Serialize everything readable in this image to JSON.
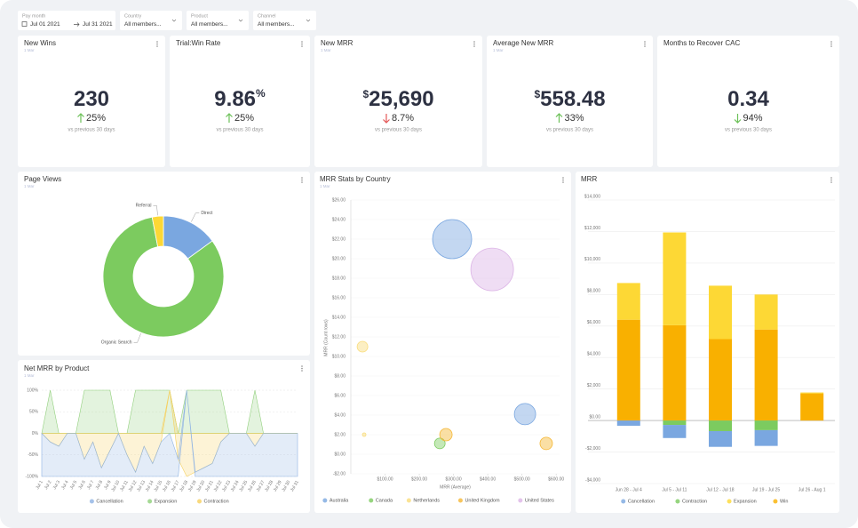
{
  "filters": [
    {
      "label": "Pay month",
      "value": "Jul 01 2021",
      "value_end": "Jul 31 2021"
    },
    {
      "label": "Country",
      "value": "All members..."
    },
    {
      "label": "Product",
      "value": "All members..."
    },
    {
      "label": "Channel",
      "value": "All members..."
    }
  ],
  "kpis": [
    {
      "title": "New Wins",
      "subtitle": "1 Mar",
      "value": "230",
      "change": "25%",
      "direction": "up",
      "change_color": "#6cc158",
      "comparison": "vs previous 30 days"
    },
    {
      "title": "Trial:Win Rate",
      "value": "9.86",
      "suffix": "%",
      "change": "25%",
      "direction": "up",
      "change_color": "#6cc158",
      "comparison": "vs previous 30 days"
    },
    {
      "title": "New MRR",
      "subtitle": "1 Mar",
      "prefix": "$",
      "value": "25,690",
      "change": "8.7%",
      "direction": "down",
      "change_color": "#e45757",
      "comparison": "vs previous 30 days"
    },
    {
      "title": "Average New MRR",
      "subtitle": "1 Mar",
      "prefix": "$",
      "value": "558.48",
      "change": "33%",
      "direction": "up",
      "change_color": "#6cc158",
      "comparison": "vs previous 30 days"
    },
    {
      "title": "Months to Recover CAC",
      "value": "0.34",
      "change": "94%",
      "direction": "down",
      "change_color": "#6cc158",
      "comparison": "vs previous 30 days"
    }
  ],
  "chart_data": [
    {
      "type": "pie",
      "title": "Page Views",
      "subtitle": "1 Mar",
      "hole": 0.5,
      "categories": [
        "Direct",
        "Organic Search",
        "Referral"
      ],
      "values": [
        15,
        82,
        3
      ],
      "colors": [
        "#7aa7e0",
        "#7ccb5f",
        "#fdd835"
      ]
    },
    {
      "type": "area",
      "title": "Net MRR by Product",
      "subtitle": "1 Mar",
      "legend": "bottom",
      "categories": [
        "Jul 1",
        "Jul 2",
        "Jul 3",
        "Jul 4",
        "Jul 5",
        "Jul 6",
        "Jul 7",
        "Jul 8",
        "Jul 9",
        "Jul 10",
        "Jul 11",
        "Jul 12",
        "Jul 13",
        "Jul 14",
        "Jul 15",
        "Jul 16",
        "Jul 17",
        "Jul 18",
        "Jul 19",
        "Jul 20",
        "Jul 21",
        "Jul 22",
        "Jul 23",
        "Jul 24",
        "Jul 25",
        "Jul 26",
        "Jul 27",
        "Jul 28",
        "Jul 29",
        "Jul 30",
        "Jul 31"
      ],
      "series": [
        {
          "name": "Cancellation",
          "color": "#8fb3e3",
          "values": [
            -100,
            -80,
            -70,
            -100,
            -100,
            -40,
            -80,
            -20,
            -60,
            -100,
            -50,
            -10,
            -70,
            -30,
            -80,
            -100,
            -40,
            0,
            -10,
            -20,
            -30,
            -80,
            -100,
            -100,
            -100,
            -70,
            -100,
            -100,
            -100,
            -100,
            -100
          ]
        },
        {
          "name": "Expansion",
          "color": "#8fcf7a",
          "values": [
            0,
            100,
            0,
            0,
            0,
            100,
            100,
            100,
            100,
            0,
            0,
            100,
            100,
            100,
            100,
            100,
            0,
            100,
            100,
            100,
            100,
            100,
            0,
            0,
            0,
            100,
            0,
            0,
            0,
            0,
            0
          ]
        },
        {
          "name": "Contraction",
          "color": "#f6cf5c",
          "values": [
            0,
            -20,
            -30,
            0,
            0,
            -60,
            -20,
            -80,
            -40,
            0,
            -50,
            -90,
            -30,
            -70,
            -20,
            0,
            -60,
            -100,
            -90,
            -80,
            -70,
            -20,
            0,
            0,
            0,
            -30,
            0,
            0,
            0,
            0,
            0
          ]
        }
      ],
      "ylim": [
        -100,
        100
      ],
      "yticks": [
        {
          "value": 100,
          "label": "100%"
        },
        {
          "value": 50,
          "label": "50%"
        },
        {
          "value": 0,
          "label": "0%"
        },
        {
          "value": -50,
          "label": "-50%"
        },
        {
          "value": -100,
          "label": "-100%"
        }
      ]
    },
    {
      "type": "bubble",
      "title": "MRR Stats by Country",
      "subtitle": "1 Mar",
      "xlabel": "MRR (Average)",
      "ylabel": "MRR (Count rows)",
      "legend": "bottom",
      "xlim": [
        0,
        610
      ],
      "xticks": [
        {
          "value": 100,
          "label": "$100.00"
        },
        {
          "value": 200,
          "label": "$200.00"
        },
        {
          "value": 300,
          "label": "$300.00"
        },
        {
          "value": 400,
          "label": "$400.00"
        },
        {
          "value": 500,
          "label": "$500.00"
        },
        {
          "value": 600,
          "label": "$600.00"
        }
      ],
      "ylim": [
        -2,
        26
      ],
      "yticks": [
        {
          "value": -2,
          "label": "-$2.00"
        },
        {
          "value": 0,
          "label": "$0.00"
        },
        {
          "value": 2,
          "label": "$2.00"
        },
        {
          "value": 4,
          "label": "$4.00"
        },
        {
          "value": 6,
          "label": "$6.00"
        },
        {
          "value": 8,
          "label": "$8.00"
        },
        {
          "value": 10,
          "label": "$10.00"
        },
        {
          "value": 12,
          "label": "$12.00"
        },
        {
          "value": 14,
          "label": "$14.00"
        },
        {
          "value": 16,
          "label": "$16.00"
        },
        {
          "value": 18,
          "label": "$18.00"
        },
        {
          "value": 20,
          "label": "$20.00"
        },
        {
          "value": 22,
          "label": "$22.00"
        },
        {
          "value": 24,
          "label": "$24.00"
        },
        {
          "value": 26,
          "label": "$26.00"
        }
      ],
      "series": [
        {
          "name": "Australia",
          "color": "#7aa7e0",
          "x": [
            296,
            509
          ],
          "values": [
            22,
            4.1
          ],
          "sizes": [
            22,
            12
          ]
        },
        {
          "name": "Canada",
          "color": "#7ccb5f",
          "x": [
            260
          ],
          "values": [
            1.1
          ],
          "sizes": [
            6
          ]
        },
        {
          "name": "Netherlands",
          "color": "#f9dc7a",
          "x": [
            34,
            39
          ],
          "values": [
            11,
            2
          ],
          "sizes": [
            6,
            2
          ]
        },
        {
          "name": "United Kingdom",
          "color": "#f5b735",
          "x": [
            278,
            571
          ],
          "values": [
            2,
            1.1
          ],
          "sizes": [
            7,
            7
          ]
        },
        {
          "name": "United States",
          "color": "#dcb4e6",
          "x": [
            413
          ],
          "values": [
            18.9
          ],
          "sizes": [
            24
          ]
        }
      ]
    },
    {
      "type": "bar",
      "stacked": true,
      "title": "MRR",
      "legend": "bottom",
      "categories": [
        "Jun 28 - Jul 4",
        "Jul 5 - Jul 11",
        "Jul 12 - Jul 18",
        "Jul 19 - Jul 25",
        "Jul 26 - Aug 1"
      ],
      "series": [
        {
          "name": "Cancellation",
          "color": "#7aa7e0",
          "values": [
            -330,
            -830,
            -1000,
            -1000,
            0
          ]
        },
        {
          "name": "Contraction",
          "color": "#7ccb5f",
          "values": [
            0,
            -280,
            -670,
            -610,
            0
          ]
        },
        {
          "name": "Expansion",
          "color": "#fdd835",
          "values": [
            2330,
            5890,
            3390,
            2220,
            60
          ]
        },
        {
          "name": "Win",
          "color": "#f9b000",
          "values": [
            6400,
            6050,
            5170,
            5780,
            1720
          ]
        }
      ],
      "ylim": [
        -4000,
        14000
      ],
      "yticks": [
        {
          "value": 14000,
          "label": "$14,000"
        },
        {
          "value": 12000,
          "label": "$12,000"
        },
        {
          "value": 10000,
          "label": "$10,000"
        },
        {
          "value": 8000,
          "label": "$8,000"
        },
        {
          "value": 6000,
          "label": "$6,000"
        },
        {
          "value": 4000,
          "label": "$4,000"
        },
        {
          "value": 2000,
          "label": "$2,000"
        },
        {
          "value": 0,
          "label": "$0.00"
        },
        {
          "value": -2000,
          "label": "-$2,000"
        },
        {
          "value": -4000,
          "label": "-$4,000"
        }
      ]
    }
  ]
}
